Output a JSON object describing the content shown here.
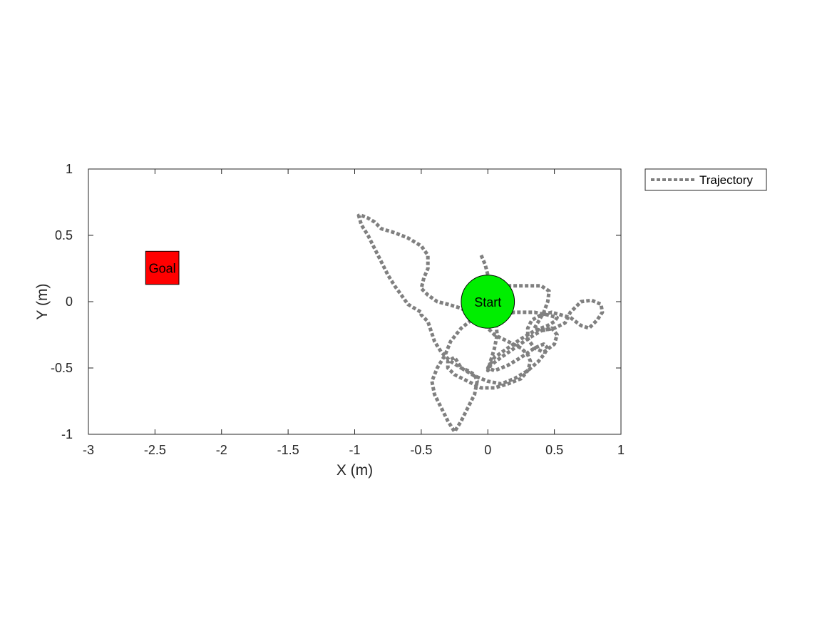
{
  "chart_data": {
    "type": "line",
    "xlabel": "X (m)",
    "ylabel": "Y (m)",
    "xlim": [
      -3,
      1
    ],
    "ylim": [
      -1,
      1
    ],
    "x_ticks": [
      -3,
      -2.5,
      -2,
      -1.5,
      -1,
      -0.5,
      0,
      0.5,
      1
    ],
    "x_tick_labels": [
      "-3",
      "-2.5",
      "-2",
      "-1.5",
      "-1",
      "-0.5",
      "0",
      "0.5",
      "1"
    ],
    "y_ticks": [
      -1,
      -0.5,
      0,
      0.5,
      1
    ],
    "y_tick_labels": [
      "-1",
      "-0.5",
      "0",
      "0.5",
      "1"
    ],
    "grid": false,
    "legend_position": "outside-top-right",
    "series": [
      {
        "name": "Trajectory",
        "color": "#808080",
        "line_style": "dotted",
        "x": [
          -0.05,
          -0.02,
          0.0,
          0.04,
          0.1,
          0.2,
          0.3,
          0.4,
          0.46,
          0.45,
          0.42,
          0.38,
          0.35,
          0.4,
          0.5,
          0.58,
          0.62,
          0.7,
          0.78,
          0.85,
          0.86,
          0.82,
          0.76,
          0.7,
          0.62,
          0.55,
          0.48,
          0.4,
          0.33,
          0.3,
          0.3,
          0.35,
          0.42,
          0.5,
          0.52,
          0.48,
          0.4,
          0.3,
          0.2,
          0.1,
          0.02,
          0.0,
          0.02,
          0.05,
          0.07,
          0.06,
          0.0,
          -0.1,
          -0.2,
          -0.28,
          -0.32,
          -0.38,
          -0.42,
          -0.4,
          -0.35,
          -0.3,
          -0.25,
          -0.2,
          -0.15,
          -0.1,
          -0.08,
          -0.1,
          -0.15,
          -0.2,
          -0.28,
          -0.35,
          -0.4,
          -0.45,
          -0.5,
          -0.5,
          -0.55,
          -0.6,
          -0.65,
          -0.7,
          -0.75,
          -0.8,
          -0.85,
          -0.9,
          -0.95,
          -0.97,
          -0.95,
          -0.9,
          -0.85,
          -0.8,
          -0.7,
          -0.6,
          -0.5,
          -0.45,
          -0.45,
          -0.48,
          -0.5,
          -0.45,
          -0.38,
          -0.3,
          -0.2,
          -0.12,
          -0.05,
          0.0,
          0.05,
          0.15,
          0.25,
          0.3,
          0.32,
          0.3,
          0.25,
          0.15,
          0.05,
          -0.05,
          -0.15,
          -0.25,
          -0.3,
          -0.3,
          -0.25,
          -0.2,
          -0.1,
          0.0,
          0.1,
          0.2,
          0.3,
          0.38,
          0.42,
          0.45,
          0.42,
          0.35,
          0.25,
          0.15,
          0.05,
          0.0,
          0.05,
          0.15,
          0.25,
          0.35,
          0.45,
          0.5,
          0.52,
          0.45,
          0.35,
          0.2,
          0.1
        ],
        "y": [
          0.35,
          0.28,
          0.2,
          0.14,
          0.12,
          0.12,
          0.12,
          0.12,
          0.08,
          0.0,
          -0.08,
          -0.15,
          -0.2,
          -0.22,
          -0.2,
          -0.16,
          -0.08,
          0.0,
          0.01,
          -0.02,
          -0.08,
          -0.14,
          -0.2,
          -0.18,
          -0.12,
          -0.1,
          -0.08,
          -0.1,
          -0.14,
          -0.2,
          -0.28,
          -0.35,
          -0.38,
          -0.32,
          -0.25,
          -0.2,
          -0.22,
          -0.28,
          -0.35,
          -0.42,
          -0.48,
          -0.52,
          -0.45,
          -0.35,
          -0.25,
          -0.15,
          -0.1,
          -0.12,
          -0.2,
          -0.3,
          -0.4,
          -0.5,
          -0.6,
          -0.7,
          -0.8,
          -0.9,
          -0.98,
          -0.9,
          -0.8,
          -0.7,
          -0.6,
          -0.55,
          -0.52,
          -0.5,
          -0.45,
          -0.38,
          -0.3,
          -0.15,
          -0.1,
          -0.08,
          -0.05,
          -0.02,
          0.05,
          0.12,
          0.2,
          0.3,
          0.4,
          0.5,
          0.58,
          0.65,
          0.65,
          0.63,
          0.6,
          0.55,
          0.52,
          0.48,
          0.42,
          0.35,
          0.25,
          0.18,
          0.1,
          0.05,
          0.0,
          -0.02,
          -0.05,
          -0.1,
          -0.15,
          -0.2,
          -0.25,
          -0.3,
          -0.35,
          -0.4,
          -0.45,
          -0.52,
          -0.58,
          -0.62,
          -0.65,
          -0.65,
          -0.6,
          -0.55,
          -0.5,
          -0.45,
          -0.42,
          -0.5,
          -0.56,
          -0.6,
          -0.62,
          -0.58,
          -0.52,
          -0.45,
          -0.4,
          -0.35,
          -0.32,
          -0.35,
          -0.42,
          -0.48,
          -0.52,
          -0.5,
          -0.42,
          -0.35,
          -0.28,
          -0.22,
          -0.18,
          -0.15,
          -0.12,
          -0.1,
          -0.08,
          -0.08,
          -0.1
        ]
      }
    ],
    "markers": {
      "start": {
        "label": "Start",
        "x": 0.0,
        "y": 0.0,
        "radius": 0.2,
        "color": "#00ee00"
      },
      "goal": {
        "label": "Goal",
        "x_range": [
          -2.57,
          -2.32
        ],
        "y_range": [
          0.13,
          0.38
        ],
        "color": "#ff0000"
      }
    }
  }
}
